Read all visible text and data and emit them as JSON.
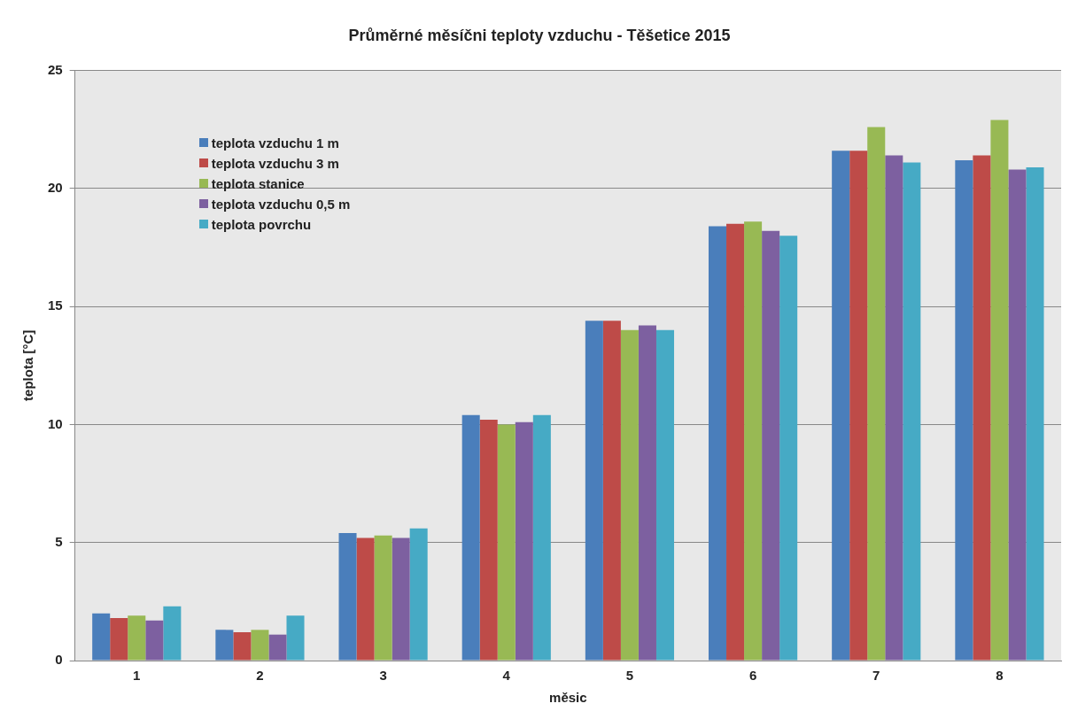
{
  "chart_data": {
    "type": "bar",
    "title": "Průměrné měsíčni teploty vzduchu - Těšetice 2015",
    "xlabel": "měsic",
    "ylabel": "teplota [°C]",
    "categories": [
      "1",
      "2",
      "3",
      "4",
      "5",
      "6",
      "7",
      "8"
    ],
    "series": [
      {
        "name": "teplota vzduchu 1 m",
        "color": "#4a7ebb",
        "values": [
          2.0,
          1.3,
          5.4,
          10.4,
          14.4,
          18.4,
          21.6,
          21.2
        ]
      },
      {
        "name": "teplota vzduchu 3 m",
        "color": "#be4b48",
        "values": [
          1.8,
          1.2,
          5.2,
          10.2,
          14.4,
          18.5,
          21.6,
          21.4
        ]
      },
      {
        "name": "teplota stanice",
        "color": "#98b954",
        "values": [
          1.9,
          1.3,
          5.3,
          10.0,
          14.0,
          18.6,
          22.6,
          22.9
        ]
      },
      {
        "name": "teplota vzduchu 0,5 m",
        "color": "#7d60a0",
        "values": [
          1.7,
          1.1,
          5.2,
          10.1,
          14.2,
          18.2,
          21.4,
          20.8
        ]
      },
      {
        "name": "teplota povrchu",
        "color": "#46aac5",
        "values": [
          2.3,
          1.9,
          5.6,
          10.4,
          14.0,
          18.0,
          21.1,
          20.9
        ]
      }
    ],
    "ylim": [
      0,
      25
    ],
    "yticks": [
      0,
      5,
      10,
      15,
      20,
      25
    ],
    "grid": "y",
    "legend": "top left"
  }
}
